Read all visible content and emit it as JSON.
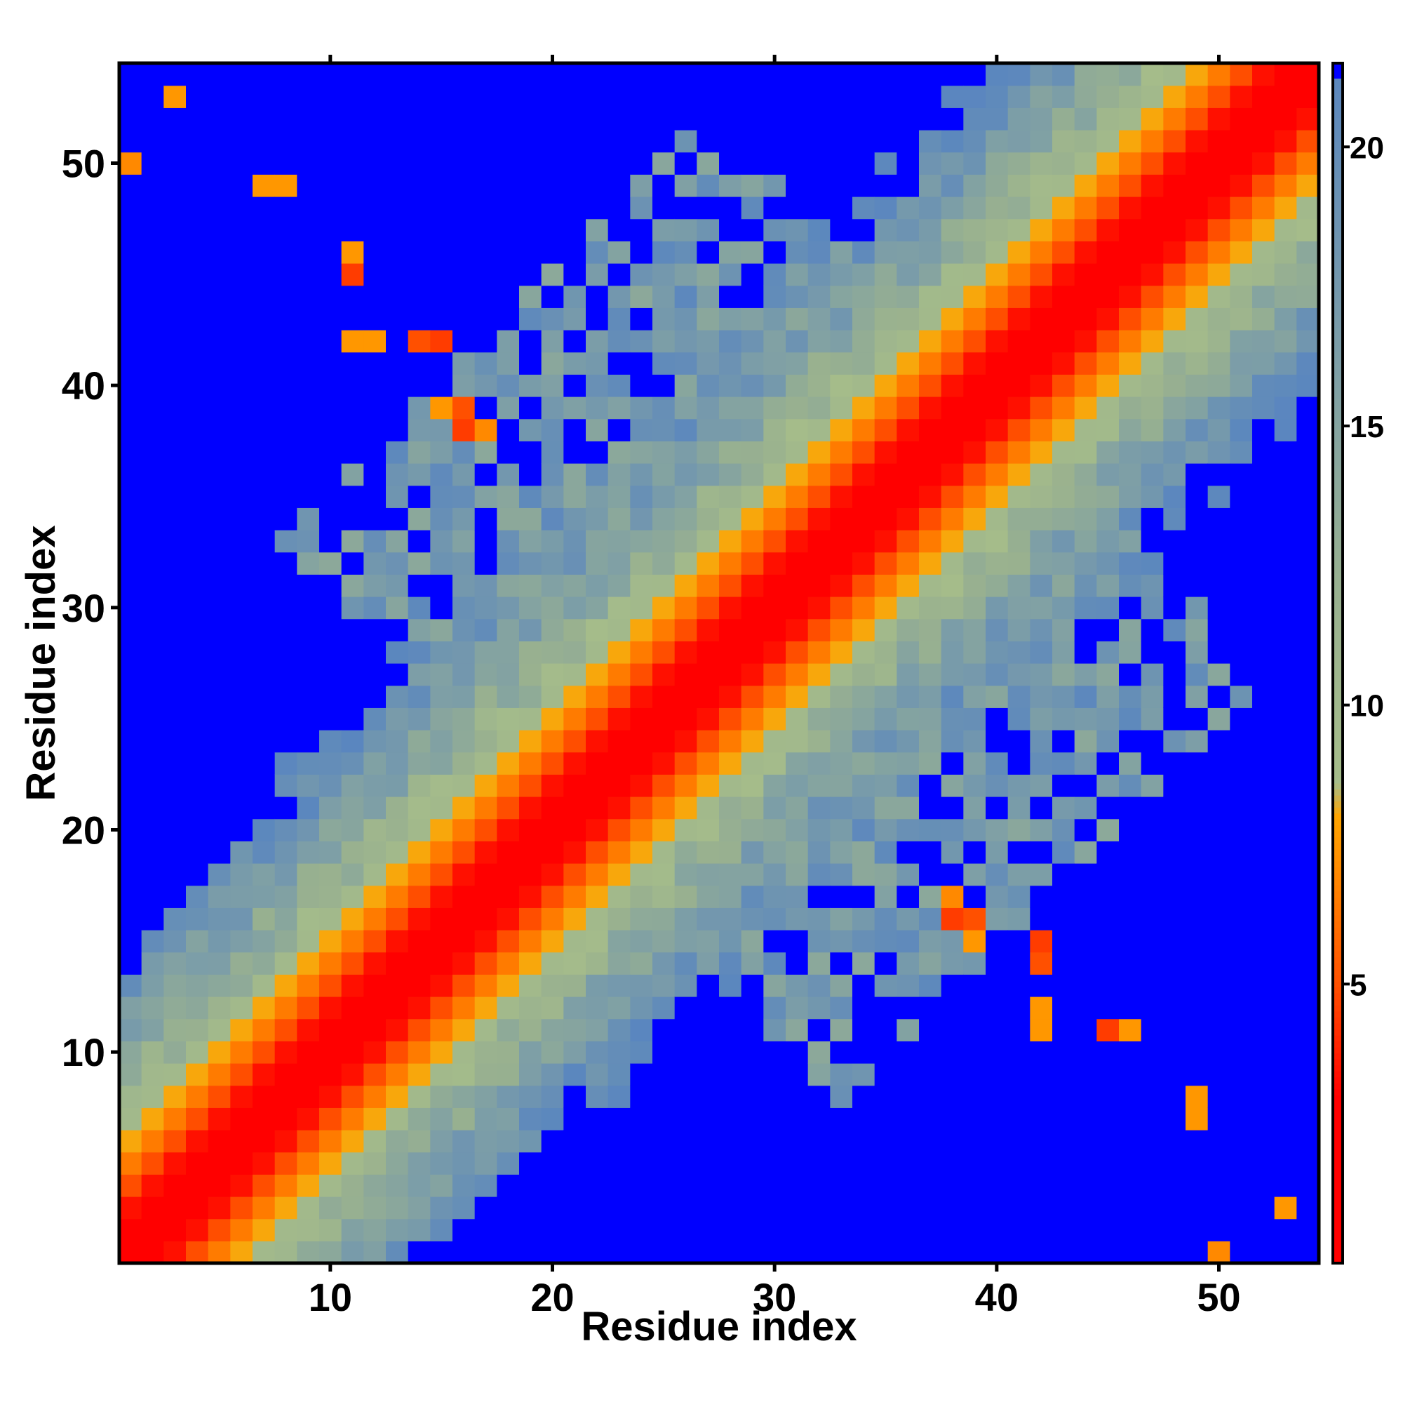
{
  "chart_data": {
    "type": "heatmap",
    "title": "",
    "xlabel": "Residue index",
    "ylabel": "Residue index",
    "n_residues": 54,
    "xlim": [
      0.5,
      54.5
    ],
    "ylim": [
      0.5,
      54.5
    ],
    "x_ticks": [
      10,
      20,
      30,
      40,
      50
    ],
    "y_ticks": [
      10,
      20,
      30,
      40,
      50
    ],
    "x_tick_labels": [
      "10",
      "20",
      "30",
      "40",
      "50"
    ],
    "y_tick_labels": [
      "10",
      "20",
      "30",
      "40",
      "50"
    ],
    "colorbar": {
      "range": [
        0,
        21.5
      ],
      "ticks": [
        5,
        10,
        15,
        20
      ],
      "tick_labels": [
        "5",
        "10",
        "15",
        "20"
      ],
      "cutoff": 21.5,
      "stops": [
        {
          "value": 0,
          "color": "#ff0000"
        },
        {
          "value": 3,
          "color": "#ff0000"
        },
        {
          "value": 5,
          "color": "#ff5000"
        },
        {
          "value": 8,
          "color": "#ffa500"
        },
        {
          "value": 8.6,
          "color": "#a6bd8a"
        },
        {
          "value": 12,
          "color": "#99b18f"
        },
        {
          "value": 16,
          "color": "#7e9fa6"
        },
        {
          "value": 21.5,
          "color": "#5a86bf"
        }
      ],
      "over_color": "#0000ff"
    },
    "grid": false,
    "legend": "colorbar-right",
    "matrix_description": "Symmetric residue-residue distance map: ~1.5 per residue separation along the diagonal, saturating (>21.5, blue) away from the diagonal; anti-diagonal contacts between segments 1-18 and 38-54 plus scattered mid-range contacts.",
    "model": {
      "per_residue": 1.55,
      "base": 0.3,
      "anti_axis": 56,
      "anti_strength": 13,
      "anti_width": 9,
      "corner_pair_values": [
        {
          "i": 1,
          "j": 50,
          "value": 7
        },
        {
          "i": 3,
          "j": 53,
          "value": 7.5
        },
        {
          "i": 7,
          "j": 49,
          "value": 7.5
        },
        {
          "i": 8,
          "j": 49,
          "value": 7.5
        },
        {
          "i": 11,
          "j": 46,
          "value": 7.5
        },
        {
          "i": 11,
          "j": 45,
          "value": 4.5
        },
        {
          "i": 11,
          "j": 42,
          "value": 7.5
        },
        {
          "i": 12,
          "j": 42,
          "value": 7.5
        },
        {
          "i": 14,
          "j": 42,
          "value": 5
        },
        {
          "i": 15,
          "j": 42,
          "value": 4.5
        },
        {
          "i": 16,
          "j": 39,
          "value": 5
        },
        {
          "i": 17,
          "j": 38,
          "value": 7
        },
        {
          "i": 16,
          "j": 38,
          "value": 4.5
        },
        {
          "i": 15,
          "j": 39,
          "value": 7.5
        }
      ]
    }
  }
}
